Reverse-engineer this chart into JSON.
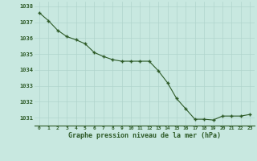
{
  "x": [
    0,
    1,
    2,
    3,
    4,
    5,
    6,
    7,
    8,
    9,
    10,
    11,
    12,
    13,
    14,
    15,
    16,
    17,
    18,
    19,
    20,
    21,
    22,
    23
  ],
  "y": [
    1037.6,
    1037.1,
    1036.5,
    1036.1,
    1035.9,
    1035.65,
    1035.1,
    1034.85,
    1034.65,
    1034.55,
    1034.55,
    1034.55,
    1034.55,
    1033.95,
    1033.2,
    1032.2,
    1031.55,
    1030.9,
    1030.9,
    1030.85,
    1031.1,
    1031.1,
    1031.1,
    1031.2
  ],
  "ylim": [
    1030.5,
    1038.3
  ],
  "yticks": [
    1031,
    1032,
    1033,
    1034,
    1035,
    1036,
    1037,
    1038
  ],
  "xticks": [
    0,
    1,
    2,
    3,
    4,
    5,
    6,
    7,
    8,
    9,
    10,
    11,
    12,
    13,
    14,
    15,
    16,
    17,
    18,
    19,
    20,
    21,
    22,
    23
  ],
  "line_color": "#2d5a27",
  "marker_color": "#2d5a27",
  "bg_color": "#c8e8e0",
  "grid_color_major": "#b0d4cc",
  "grid_color_minor": "#b0d4cc",
  "xlabel": "Graphe pression niveau de la mer (hPa)",
  "xlabel_color": "#2d5a27",
  "tick_color": "#2d5a27"
}
